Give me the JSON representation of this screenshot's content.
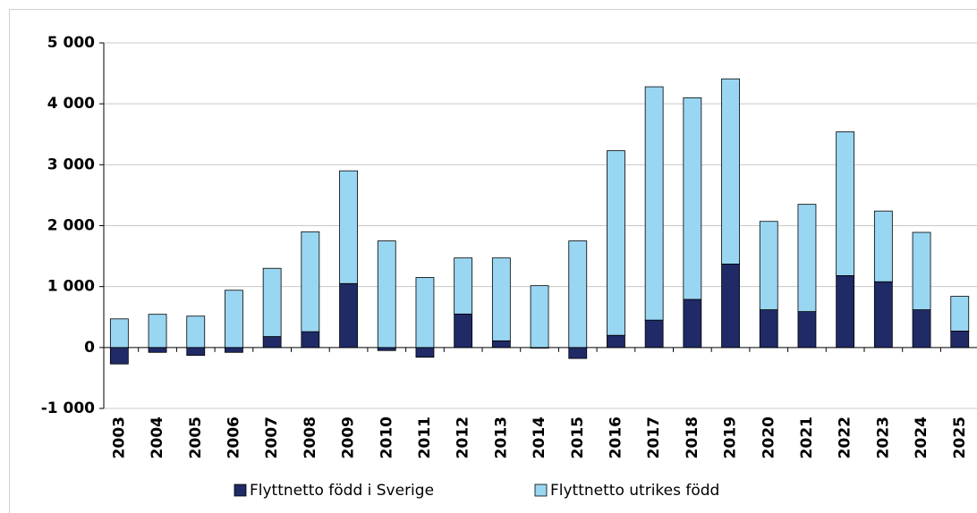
{
  "chart_data": {
    "type": "stacked_bar",
    "categories": [
      "2003",
      "2004",
      "2005",
      "2006",
      "2007",
      "2008",
      "2009",
      "2010",
      "2011",
      "2012",
      "2013",
      "2014",
      "2015",
      "2016",
      "2017",
      "2018",
      "2019",
      "2020",
      "2021",
      "2022",
      "2023",
      "2024",
      "2025"
    ],
    "series": [
      {
        "name": "Flyttnetto född i Sverige",
        "color": "#1f2a66",
        "values": [
          -270,
          -80,
          -130,
          -80,
          180,
          260,
          1050,
          -50,
          -160,
          550,
          110,
          -10,
          -180,
          200,
          450,
          790,
          1370,
          620,
          590,
          1180,
          1080,
          620,
          270
        ]
      },
      {
        "name": "Flyttnetto utrikes född",
        "color": "#99d6f2",
        "values": [
          470,
          545,
          515,
          940,
          1120,
          1640,
          1850,
          1750,
          1150,
          920,
          1360,
          1015,
          1750,
          3030,
          3830,
          3310,
          3040,
          1450,
          1760,
          2360,
          1160,
          1270,
          570
        ]
      }
    ],
    "ylim": [
      -1000,
      5000
    ],
    "yticks": [
      {
        "value": -1000,
        "label": "-1 000"
      },
      0,
      {
        "value": 1000,
        "label": "1 000"
      },
      {
        "value": 2000,
        "label": "2 000"
      },
      {
        "value": 3000,
        "label": "3 000"
      },
      {
        "value": 4000,
        "label": "4 000"
      },
      {
        "value": 5000,
        "label": "5 000"
      }
    ],
    "grid": true,
    "legend": "bottom"
  }
}
